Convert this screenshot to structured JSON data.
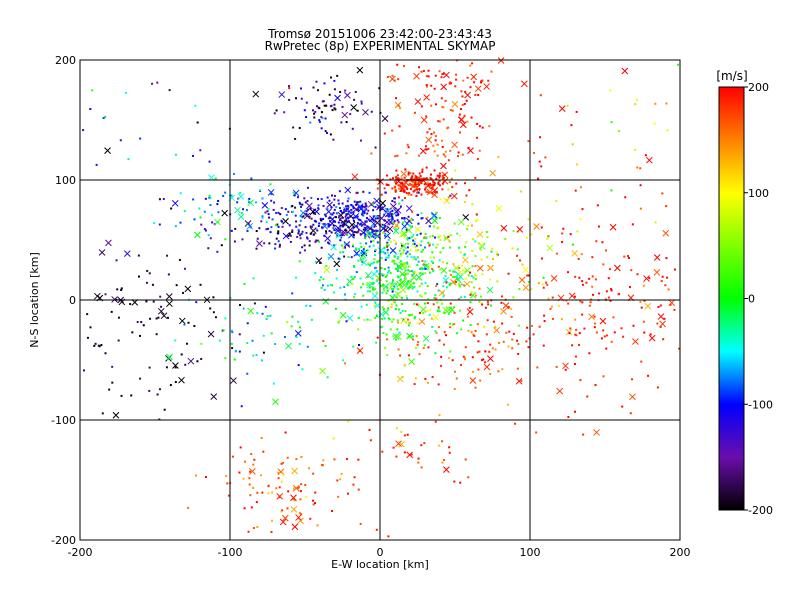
{
  "chart_data": {
    "type": "scatter",
    "title": "Tromsø 20151006 23:42:00-23:43:43",
    "subtitle": "RwPretec (8p) EXPERIMENTAL SKYMAP",
    "xlabel": "E-W location [km]",
    "ylabel": "N-S location [km]",
    "xlim": [
      -200,
      200
    ],
    "ylim": [
      -200,
      200
    ],
    "xticks": [
      "-200",
      "-100",
      "0",
      "100",
      "200"
    ],
    "yticks": [
      "-200",
      "-100",
      "0",
      "100",
      "200"
    ],
    "grid": true,
    "colorbar": {
      "label": "[m/s]",
      "range": [
        -200,
        200
      ],
      "ticks": [
        "200",
        "100",
        "0",
        "-100",
        "-200"
      ],
      "stops": [
        {
          "v": -200,
          "color": "#000000"
        },
        {
          "v": -150,
          "color": "#6a0dad"
        },
        {
          "v": -100,
          "color": "#0000ff"
        },
        {
          "v": -50,
          "color": "#00ffff"
        },
        {
          "v": 0,
          "color": "#00ff00"
        },
        {
          "v": 100,
          "color": "#ffff00"
        },
        {
          "v": 150,
          "color": "#ff8000"
        },
        {
          "v": 200,
          "color": "#ff0000"
        }
      ]
    },
    "clusters": [
      {
        "cx": 25,
        "cy": 97,
        "sx": 12,
        "sy": 5,
        "n": 200,
        "v": 190,
        "vs": 20
      },
      {
        "cx": 40,
        "cy": 140,
        "sx": 18,
        "sy": 20,
        "n": 90,
        "v": 180,
        "vs": 25
      },
      {
        "cx": 40,
        "cy": 185,
        "sx": 25,
        "sy": 10,
        "n": 60,
        "v": 185,
        "vs": 20
      },
      {
        "cx": -15,
        "cy": 68,
        "sx": 25,
        "sy": 10,
        "n": 300,
        "v": -110,
        "vs": 20
      },
      {
        "cx": -45,
        "cy": 62,
        "sx": 30,
        "sy": 12,
        "n": 180,
        "v": -160,
        "vs": 40
      },
      {
        "cx": -40,
        "cy": 160,
        "sx": 20,
        "sy": 15,
        "n": 80,
        "v": -170,
        "vs": 40
      },
      {
        "cx": -100,
        "cy": 80,
        "sx": 25,
        "sy": 12,
        "n": 70,
        "v": -70,
        "vs": 40
      },
      {
        "cx": 0,
        "cy": 35,
        "sx": 20,
        "sy": 15,
        "n": 150,
        "v": -50,
        "vs": 30
      },
      {
        "cx": 20,
        "cy": 10,
        "sx": 25,
        "sy": 25,
        "n": 350,
        "v": 10,
        "vs": 35
      },
      {
        "cx": 60,
        "cy": 40,
        "sx": 30,
        "sy": 25,
        "n": 150,
        "v": 90,
        "vs": 50
      },
      {
        "cx": 60,
        "cy": -30,
        "sx": 35,
        "sy": 25,
        "n": 160,
        "v": 170,
        "vs": 30
      },
      {
        "cx": 150,
        "cy": 0,
        "sx": 35,
        "sy": 40,
        "n": 180,
        "v": 190,
        "vs": 20
      },
      {
        "cx": -150,
        "cy": -20,
        "sx": 30,
        "sy": 35,
        "n": 110,
        "v": -190,
        "vs": 15
      },
      {
        "cx": -70,
        "cy": -30,
        "sx": 30,
        "sy": 25,
        "n": 70,
        "v": -40,
        "vs": 40
      },
      {
        "cx": -60,
        "cy": -160,
        "sx": 25,
        "sy": 20,
        "n": 100,
        "v": 175,
        "vs": 30
      },
      {
        "cx": 20,
        "cy": -125,
        "sx": 25,
        "sy": 15,
        "n": 40,
        "v": 170,
        "vs": 30
      },
      {
        "cx": 150,
        "cy": 130,
        "sx": 35,
        "sy": 30,
        "n": 40,
        "v": 150,
        "vs": 80
      },
      {
        "cx": -160,
        "cy": 120,
        "sx": 30,
        "sy": 40,
        "n": 25,
        "v": -100,
        "vs": 90
      }
    ]
  }
}
